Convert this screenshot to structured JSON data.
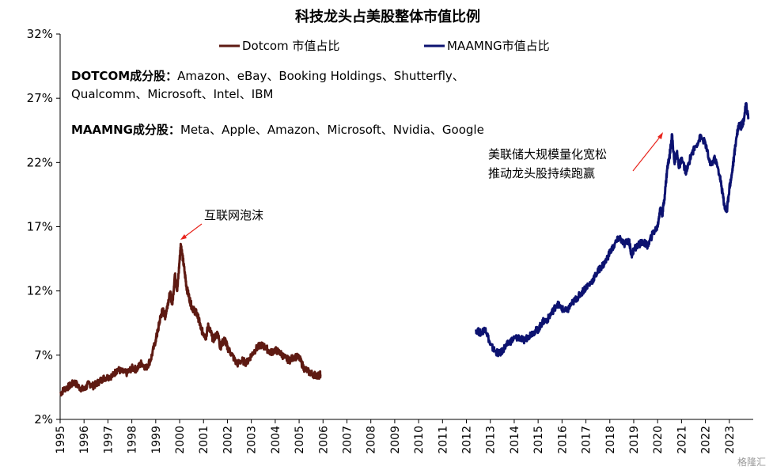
{
  "chart_data": {
    "type": "line",
    "title": "科技龙头占美股整体市值比例",
    "xlabel": "",
    "ylabel": "",
    "x_range": [
      1995,
      2024
    ],
    "ylim": [
      2,
      32
    ],
    "y_ticks": [
      "32%",
      "27%",
      "22%",
      "17%",
      "12%",
      "7%",
      "2%"
    ],
    "y_tick_values": [
      32,
      27,
      22,
      17,
      12,
      7,
      2
    ],
    "x_ticks": [
      "1995",
      "1996",
      "1997",
      "1998",
      "1999",
      "2000",
      "2001",
      "2002",
      "2003",
      "2004",
      "2005",
      "2006",
      "2007",
      "2008",
      "2009",
      "2010",
      "2011",
      "2012",
      "2013",
      "2014",
      "2015",
      "2016",
      "2017",
      "2018",
      "2019",
      "2020",
      "2021",
      "2022",
      "2023"
    ],
    "grid": false,
    "legend_position": "top",
    "series": [
      {
        "name": "Dotcom 市值占比",
        "color": "#5e1a12",
        "points": [
          [
            1995.0,
            4.0
          ],
          [
            1995.2,
            4.4
          ],
          [
            1995.4,
            4.6
          ],
          [
            1995.6,
            4.9
          ],
          [
            1995.8,
            4.5
          ],
          [
            1996.0,
            4.3
          ],
          [
            1996.2,
            4.8
          ],
          [
            1996.4,
            4.6
          ],
          [
            1996.6,
            4.9
          ],
          [
            1996.8,
            5.2
          ],
          [
            1997.0,
            5.3
          ],
          [
            1997.2,
            5.4
          ],
          [
            1997.4,
            5.9
          ],
          [
            1997.6,
            5.7
          ],
          [
            1997.8,
            5.6
          ],
          [
            1998.0,
            6.0
          ],
          [
            1998.2,
            5.9
          ],
          [
            1998.4,
            6.4
          ],
          [
            1998.6,
            6.0
          ],
          [
            1998.8,
            6.7
          ],
          [
            1999.0,
            8.2
          ],
          [
            1999.1,
            9.0
          ],
          [
            1999.2,
            10.0
          ],
          [
            1999.3,
            10.5
          ],
          [
            1999.4,
            10.0
          ],
          [
            1999.5,
            11.0
          ],
          [
            1999.6,
            11.8
          ],
          [
            1999.7,
            11.0
          ],
          [
            1999.8,
            13.3
          ],
          [
            1999.9,
            12.0
          ],
          [
            2000.0,
            14.4
          ],
          [
            2000.05,
            15.6
          ],
          [
            2000.1,
            15.0
          ],
          [
            2000.2,
            13.6
          ],
          [
            2000.3,
            12.2
          ],
          [
            2000.4,
            11.5
          ],
          [
            2000.5,
            10.8
          ],
          [
            2000.6,
            10.5
          ],
          [
            2000.7,
            10.3
          ],
          [
            2000.8,
            9.8
          ],
          [
            2000.9,
            9.0
          ],
          [
            2001.0,
            8.7
          ],
          [
            2001.1,
            8.4
          ],
          [
            2001.2,
            9.3
          ],
          [
            2001.3,
            8.8
          ],
          [
            2001.4,
            8.2
          ],
          [
            2001.5,
            8.5
          ],
          [
            2001.6,
            8.7
          ],
          [
            2001.7,
            7.6
          ],
          [
            2001.8,
            8.0
          ],
          [
            2001.9,
            8.2
          ],
          [
            2002.0,
            7.6
          ],
          [
            2002.2,
            7.0
          ],
          [
            2002.4,
            6.3
          ],
          [
            2002.6,
            6.6
          ],
          [
            2002.8,
            6.4
          ],
          [
            2003.0,
            7.0
          ],
          [
            2003.2,
            7.5
          ],
          [
            2003.4,
            7.8
          ],
          [
            2003.6,
            7.6
          ],
          [
            2003.8,
            7.2
          ],
          [
            2004.0,
            7.4
          ],
          [
            2004.2,
            7.2
          ],
          [
            2004.4,
            6.8
          ],
          [
            2004.6,
            6.6
          ],
          [
            2004.8,
            6.9
          ],
          [
            2005.0,
            6.8
          ],
          [
            2005.2,
            6.0
          ],
          [
            2005.4,
            5.7
          ],
          [
            2005.6,
            5.5
          ],
          [
            2005.8,
            5.4
          ],
          [
            2005.9,
            5.5
          ]
        ]
      },
      {
        "name": "MAAMNG市值占比",
        "color": "#0c1270",
        "points": [
          [
            2012.4,
            9.0
          ],
          [
            2012.6,
            8.7
          ],
          [
            2012.8,
            9.1
          ],
          [
            2013.0,
            7.8
          ],
          [
            2013.2,
            7.3
          ],
          [
            2013.4,
            7.1
          ],
          [
            2013.6,
            7.6
          ],
          [
            2013.8,
            8.0
          ],
          [
            2014.0,
            8.3
          ],
          [
            2014.2,
            8.4
          ],
          [
            2014.4,
            8.1
          ],
          [
            2014.6,
            8.5
          ],
          [
            2014.8,
            8.8
          ],
          [
            2015.0,
            9.0
          ],
          [
            2015.2,
            9.6
          ],
          [
            2015.4,
            9.8
          ],
          [
            2015.6,
            10.4
          ],
          [
            2015.8,
            11.0
          ],
          [
            2016.0,
            10.6
          ],
          [
            2016.2,
            10.4
          ],
          [
            2016.4,
            11.0
          ],
          [
            2016.6,
            11.4
          ],
          [
            2016.8,
            11.8
          ],
          [
            2017.0,
            12.3
          ],
          [
            2017.2,
            12.6
          ],
          [
            2017.4,
            13.2
          ],
          [
            2017.6,
            13.8
          ],
          [
            2017.8,
            14.2
          ],
          [
            2018.0,
            15.0
          ],
          [
            2018.2,
            15.6
          ],
          [
            2018.4,
            16.2
          ],
          [
            2018.6,
            15.6
          ],
          [
            2018.8,
            16.0
          ],
          [
            2018.9,
            14.8
          ],
          [
            2019.0,
            15.2
          ],
          [
            2019.2,
            15.6
          ],
          [
            2019.4,
            15.8
          ],
          [
            2019.6,
            15.5
          ],
          [
            2019.8,
            16.5
          ],
          [
            2020.0,
            17.0
          ],
          [
            2020.1,
            18.4
          ],
          [
            2020.2,
            18.0
          ],
          [
            2020.3,
            19.5
          ],
          [
            2020.4,
            21.5
          ],
          [
            2020.5,
            22.5
          ],
          [
            2020.6,
            24.2
          ],
          [
            2020.7,
            22.0
          ],
          [
            2020.8,
            22.8
          ],
          [
            2020.9,
            21.6
          ],
          [
            2021.0,
            22.3
          ],
          [
            2021.2,
            21.2
          ],
          [
            2021.4,
            22.6
          ],
          [
            2021.6,
            23.3
          ],
          [
            2021.8,
            24.0
          ],
          [
            2022.0,
            23.5
          ],
          [
            2022.2,
            21.8
          ],
          [
            2022.4,
            22.3
          ],
          [
            2022.6,
            21.0
          ],
          [
            2022.7,
            19.8
          ],
          [
            2022.8,
            18.6
          ],
          [
            2022.9,
            18.2
          ],
          [
            2023.0,
            20.0
          ],
          [
            2023.1,
            21.0
          ],
          [
            2023.2,
            22.5
          ],
          [
            2023.3,
            24.0
          ],
          [
            2023.4,
            25.0
          ],
          [
            2023.5,
            24.8
          ],
          [
            2023.6,
            25.3
          ],
          [
            2023.7,
            26.5
          ],
          [
            2023.8,
            25.5
          ]
        ]
      }
    ],
    "notes": [
      {
        "bold": "DOTCOM成分股：",
        "text": "Amazon、eBay、Booking Holdings、Shutterfly、"
      },
      {
        "bold": "",
        "text": "Qualcomm、Microsoft、Intel、IBM"
      },
      {
        "bold": "MAAMNG成分股：",
        "text": "Meta、Apple、Amazon、Microsoft、Nvidia、Google"
      }
    ],
    "annotations": [
      {
        "lines": [
          "互联网泡沫"
        ],
        "color": "#e8241c"
      },
      {
        "lines": [
          "美联储大规模量化宽松",
          "推动龙头股持续跑赢"
        ],
        "color": "#e8241c"
      }
    ],
    "watermark": "格隆汇"
  }
}
